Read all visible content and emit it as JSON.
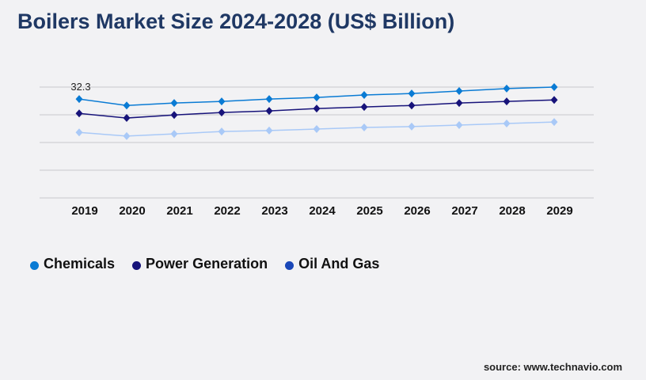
{
  "title": "Boilers Market Size 2024-2028 (US$ Billion)",
  "source": "source: www.technavio.com",
  "chart_data": {
    "type": "line",
    "title": "Boilers Market Size 2024-2028 (US$ Billion)",
    "categories": [
      "2019",
      "2020",
      "2021",
      "2022",
      "2023",
      "2024",
      "2025",
      "2026",
      "2027",
      "2028",
      "2029"
    ],
    "ylim": [
      0,
      36.2
    ],
    "grid": true,
    "legend": "bottom-left",
    "data_labels": [
      {
        "series": "Chemicals",
        "category": "2019",
        "text": "32.3"
      }
    ],
    "series": [
      {
        "name": "Chemicals",
        "color": "#0a7bd4",
        "legend_color": "#0a7bd4",
        "values": [
          32.3,
          30.2,
          31.0,
          31.5,
          32.3,
          32.8,
          33.6,
          34.1,
          34.9,
          35.7,
          36.2
        ]
      },
      {
        "name": "Power Generation",
        "color": "#17137a",
        "legend_color": "#17137a",
        "values": [
          27.6,
          26.1,
          27.1,
          27.9,
          28.4,
          29.2,
          29.7,
          30.2,
          31.0,
          31.5,
          32.0
        ]
      },
      {
        "name": "Oil And Gas",
        "color": "#a9c9f7",
        "legend_color": "#1a47b8",
        "values": [
          21.4,
          20.2,
          20.9,
          21.7,
          22.0,
          22.5,
          23.0,
          23.3,
          23.8,
          24.3,
          24.8
        ]
      }
    ]
  }
}
